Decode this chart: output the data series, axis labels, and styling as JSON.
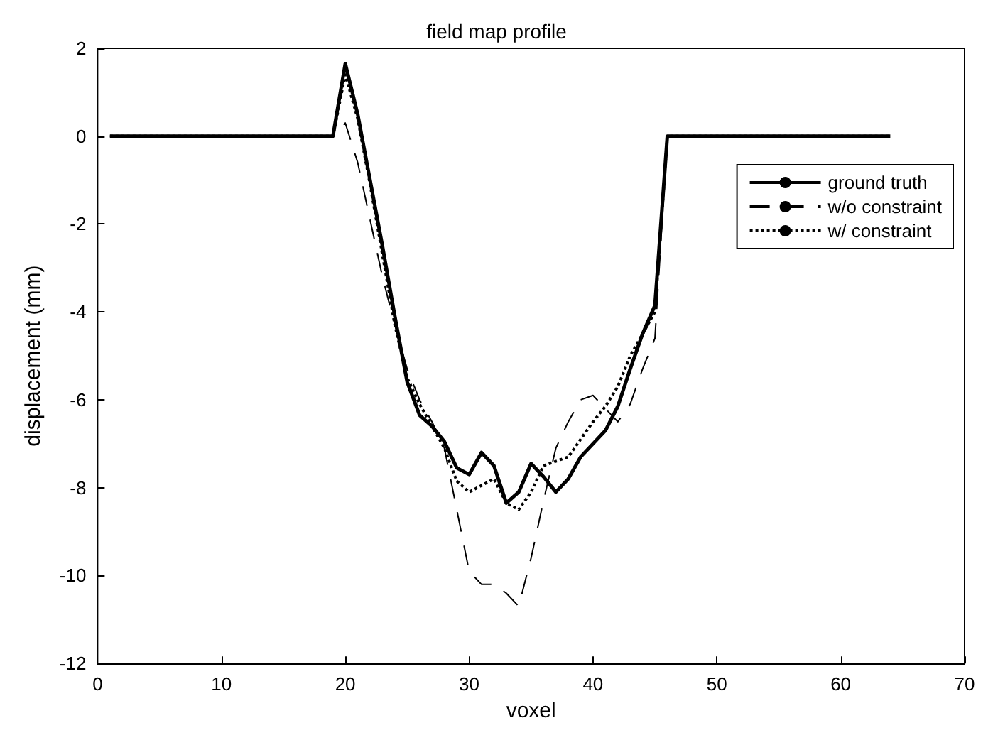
{
  "chart_data": {
    "type": "line",
    "title": "field map profile",
    "xlabel": "voxel",
    "ylabel": "displacement (mm)",
    "x": [
      1,
      2,
      3,
      4,
      5,
      6,
      7,
      8,
      9,
      10,
      11,
      12,
      13,
      14,
      15,
      16,
      17,
      18,
      19,
      20,
      21,
      22,
      23,
      24,
      25,
      26,
      27,
      28,
      29,
      30,
      31,
      32,
      33,
      34,
      35,
      36,
      37,
      38,
      39,
      40,
      41,
      42,
      43,
      44,
      45,
      46,
      47,
      48,
      49,
      50,
      51,
      52,
      53,
      54,
      55,
      56,
      57,
      58,
      59,
      60,
      61,
      62,
      63,
      64
    ],
    "series": [
      {
        "name": "ground truth",
        "color": "#000000",
        "line_style": "solid",
        "values": [
          0,
          0,
          0,
          0,
          0,
          0,
          0,
          0,
          0,
          0,
          0,
          0,
          0,
          0,
          0,
          0,
          0,
          0,
          0,
          1.65,
          0.5,
          -1.0,
          -2.5,
          -4.1,
          -5.6,
          -6.35,
          -6.6,
          -6.95,
          -7.55,
          -7.7,
          -7.2,
          -7.5,
          -8.35,
          -8.1,
          -7.45,
          -7.75,
          -8.1,
          -7.8,
          -7.3,
          -7.0,
          -6.7,
          -6.15,
          -5.3,
          -4.5,
          -3.85,
          0,
          0,
          0,
          0,
          0,
          0,
          0,
          0,
          0,
          0,
          0,
          0,
          0,
          0,
          0,
          0,
          0,
          0,
          0
        ]
      },
      {
        "name": "w/o constraint",
        "color": "#000000",
        "line_style": "dashed",
        "values": [
          0,
          0,
          0,
          0,
          0,
          0,
          0,
          0,
          0,
          0,
          0,
          0,
          0,
          0,
          0,
          0,
          0,
          0,
          0,
          0.3,
          -0.6,
          -1.9,
          -3.2,
          -4.3,
          -5.3,
          -6.0,
          -6.5,
          -7.1,
          -8.5,
          -9.9,
          -10.2,
          -10.2,
          -10.4,
          -10.7,
          -9.6,
          -8.3,
          -7.1,
          -6.5,
          -6.0,
          -5.9,
          -6.2,
          -6.5,
          -6.1,
          -5.3,
          -4.6,
          0,
          0,
          0,
          0,
          0,
          0,
          0,
          0,
          0,
          0,
          0,
          0,
          0,
          0,
          0,
          0,
          0,
          0,
          0
        ]
      },
      {
        "name": "w/ constraint",
        "color": "#000000",
        "line_style": "dotted",
        "values": [
          0,
          0,
          0,
          0,
          0,
          0,
          0,
          0,
          0,
          0,
          0,
          0,
          0,
          0,
          0,
          0,
          0,
          0,
          0,
          1.4,
          0.4,
          -1.1,
          -2.7,
          -4.3,
          -5.5,
          -6.1,
          -6.6,
          -7.1,
          -7.85,
          -8.1,
          -7.95,
          -7.8,
          -8.35,
          -8.5,
          -8.1,
          -7.5,
          -7.4,
          -7.3,
          -6.9,
          -6.5,
          -6.15,
          -5.7,
          -5.0,
          -4.5,
          -4.0,
          0,
          0,
          0,
          0,
          0,
          0,
          0,
          0,
          0,
          0,
          0,
          0,
          0,
          0,
          0,
          0,
          0,
          0,
          0
        ]
      }
    ],
    "xlim": [
      0,
      70
    ],
    "xticks": [
      0,
      10,
      20,
      30,
      40,
      50,
      60,
      70
    ],
    "ylim": [
      -12,
      2
    ],
    "yticks": [
      -12,
      -10,
      -8,
      -6,
      -4,
      -2,
      0,
      2
    ],
    "grid": false,
    "legend": "top right",
    "marker": "none"
  }
}
